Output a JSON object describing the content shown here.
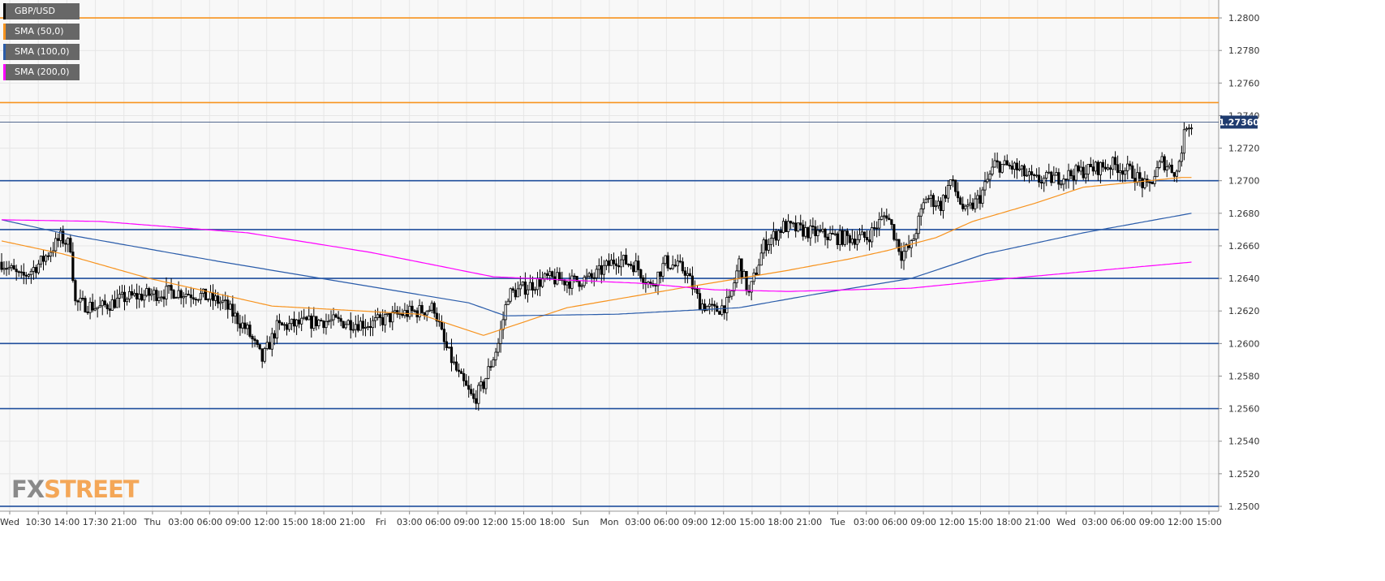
{
  "legend": [
    {
      "label": "GBP/USD",
      "color": "#000000"
    },
    {
      "label": "SMA (50,0)",
      "color": "#f7931e"
    },
    {
      "label": "SMA (100,0)",
      "color": "#2a5caa"
    },
    {
      "label": "SMA (200,0)",
      "color": "#ff00ff"
    }
  ],
  "logo": {
    "fx": "FX",
    "street": "STREET"
  },
  "chart_data": {
    "type": "candlestick",
    "symbol": "GBP/USD",
    "ylim": [
      1.2497,
      1.281
    ],
    "y_ticks": [
      "1.2500",
      "1.2520",
      "1.2540",
      "1.2560",
      "1.2580",
      "1.2600",
      "1.2620",
      "1.2640",
      "1.2660",
      "1.2680",
      "1.2700",
      "1.2720",
      "1.2740",
      "1.2760",
      "1.2780",
      "1.2800"
    ],
    "x_ticks": [
      "Wed",
      "10:30",
      "14:00",
      "17:30",
      "21:00",
      "Thu",
      "03:00",
      "06:00",
      "09:00",
      "12:00",
      "15:00",
      "18:00",
      "21:00",
      "Fri",
      "03:00",
      "06:00",
      "09:00",
      "12:00",
      "15:00",
      "18:00",
      "Sun",
      "Mon",
      "03:00",
      "06:00",
      "09:00",
      "12:00",
      "15:00",
      "18:00",
      "21:00",
      "Tue",
      "03:00",
      "06:00",
      "09:00",
      "12:00",
      "15:00",
      "18:00",
      "21:00",
      "Wed",
      "03:00",
      "06:00",
      "09:00",
      "12:00",
      "15:00"
    ],
    "current_price": "1.27360",
    "grid": true,
    "horizontal_levels": [
      {
        "value": 1.28,
        "color": "#f7931e"
      },
      {
        "value": 1.2748,
        "color": "#f7931e"
      },
      {
        "value": 1.27,
        "color": "#1f4e9c"
      },
      {
        "value": 1.267,
        "color": "#1f4e9c"
      },
      {
        "value": 1.264,
        "color": "#1f4e9c"
      },
      {
        "value": 1.26,
        "color": "#1f4e9c"
      },
      {
        "value": 1.256,
        "color": "#1f4e9c"
      },
      {
        "value": 1.25,
        "color": "#1f4e9c"
      }
    ],
    "close_anchors": [
      [
        0,
        1.265
      ],
      [
        8,
        1.264
      ],
      [
        16,
        1.265
      ],
      [
        24,
        1.2665
      ],
      [
        28,
        1.266
      ],
      [
        30,
        1.2625
      ],
      [
        40,
        1.2622
      ],
      [
        50,
        1.2628
      ],
      [
        60,
        1.263
      ],
      [
        70,
        1.2632
      ],
      [
        80,
        1.263
      ],
      [
        90,
        1.2625
      ],
      [
        100,
        1.2608
      ],
      [
        106,
        1.259
      ],
      [
        112,
        1.261
      ],
      [
        130,
        1.2614
      ],
      [
        150,
        1.2612
      ],
      [
        162,
        1.2618
      ],
      [
        170,
        1.262
      ],
      [
        176,
        1.2622
      ],
      [
        180,
        1.26
      ],
      [
        186,
        1.258
      ],
      [
        192,
        1.2565
      ],
      [
        196,
        1.2575
      ],
      [
        202,
        1.26
      ],
      [
        206,
        1.263
      ],
      [
        214,
        1.2635
      ],
      [
        222,
        1.264
      ],
      [
        232,
        1.2638
      ],
      [
        240,
        1.264
      ],
      [
        250,
        1.2652
      ],
      [
        258,
        1.2648
      ],
      [
        264,
        1.2635
      ],
      [
        270,
        1.265
      ],
      [
        278,
        1.2645
      ],
      [
        284,
        1.2625
      ],
      [
        290,
        1.262
      ],
      [
        296,
        1.2625
      ],
      [
        300,
        1.265
      ],
      [
        304,
        1.263
      ],
      [
        310,
        1.266
      ],
      [
        318,
        1.2672
      ],
      [
        330,
        1.2668
      ],
      [
        340,
        1.2665
      ],
      [
        352,
        1.2665
      ],
      [
        360,
        1.268
      ],
      [
        366,
        1.2655
      ],
      [
        370,
        1.266
      ],
      [
        376,
        1.269
      ],
      [
        382,
        1.2685
      ],
      [
        386,
        1.27
      ],
      [
        392,
        1.268
      ],
      [
        398,
        1.269
      ],
      [
        404,
        1.271
      ],
      [
        412,
        1.2708
      ],
      [
        420,
        1.27
      ],
      [
        430,
        1.2702
      ],
      [
        440,
        1.2706
      ],
      [
        452,
        1.271
      ],
      [
        460,
        1.2705
      ],
      [
        466,
        1.2695
      ],
      [
        472,
        1.2712
      ],
      [
        478,
        1.2705
      ],
      [
        482,
        1.2735
      ]
    ],
    "series": [
      {
        "name": "SMA (50,0)",
        "color": "#f7931e",
        "anchors": [
          [
            0,
            1.2663
          ],
          [
            25,
            1.2655
          ],
          [
            60,
            1.264
          ],
          [
            110,
            1.2623
          ],
          [
            170,
            1.2618
          ],
          [
            196,
            1.2605
          ],
          [
            230,
            1.2622
          ],
          [
            280,
            1.2635
          ],
          [
            300,
            1.264
          ],
          [
            320,
            1.2645
          ],
          [
            345,
            1.2652
          ],
          [
            360,
            1.2657
          ],
          [
            380,
            1.2665
          ],
          [
            395,
            1.2675
          ],
          [
            420,
            1.2686
          ],
          [
            440,
            1.2696
          ],
          [
            480,
            1.2702
          ]
        ]
      },
      {
        "name": "SMA (100,0)",
        "color": "#2a5caa",
        "anchors": [
          [
            0,
            1.2676
          ],
          [
            30,
            1.2666
          ],
          [
            90,
            1.265
          ],
          [
            150,
            1.2635
          ],
          [
            190,
            1.2625
          ],
          [
            205,
            1.2617
          ],
          [
            250,
            1.2618
          ],
          [
            300,
            1.2622
          ],
          [
            330,
            1.263
          ],
          [
            370,
            1.264
          ],
          [
            400,
            1.2655
          ],
          [
            440,
            1.2668
          ],
          [
            484,
            1.268
          ]
        ]
      },
      {
        "name": "SMA (200,0)",
        "color": "#ff00ff",
        "anchors": [
          [
            0,
            1.2676
          ],
          [
            40,
            1.2675
          ],
          [
            100,
            1.2668
          ],
          [
            150,
            1.2656
          ],
          [
            200,
            1.2641
          ],
          [
            260,
            1.2637
          ],
          [
            290,
            1.2633
          ],
          [
            320,
            1.2632
          ],
          [
            370,
            1.2634
          ],
          [
            410,
            1.264
          ],
          [
            484,
            1.265
          ]
        ]
      }
    ]
  }
}
